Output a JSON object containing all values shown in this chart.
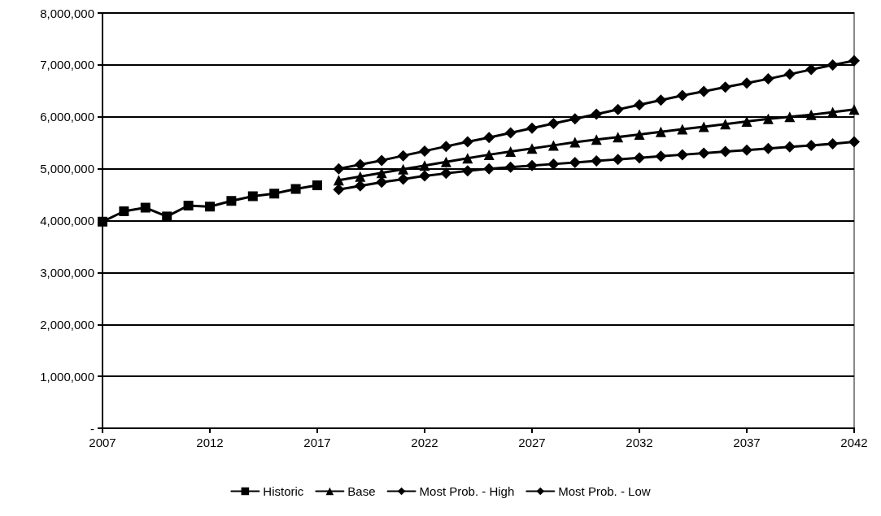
{
  "chart_data": {
    "type": "line",
    "xlim": [
      2007,
      2042
    ],
    "xticks": [
      2007,
      2012,
      2017,
      2022,
      2027,
      2032,
      2037,
      2042
    ],
    "ylim": [
      0,
      8000000
    ],
    "yticks": [
      {
        "value": 0,
        "label": "-"
      },
      {
        "value": 1000000,
        "label": "1,000,000"
      },
      {
        "value": 2000000,
        "label": "2,000,000"
      },
      {
        "value": 3000000,
        "label": "3,000,000"
      },
      {
        "value": 4000000,
        "label": "4,000,000"
      },
      {
        "value": 5000000,
        "label": "5,000,000"
      },
      {
        "value": 6000000,
        "label": "6,000,000"
      },
      {
        "value": 7000000,
        "label": "7,000,000"
      },
      {
        "value": 8000000,
        "label": "8,000,000"
      }
    ],
    "grid": "y",
    "legend": "bottom",
    "line_style": "solid",
    "series": [
      {
        "name": "Historic",
        "color": "#000000",
        "marker": "square",
        "x": [
          2007,
          2008,
          2009,
          2010,
          2011,
          2012,
          2013,
          2014,
          2015,
          2016,
          2017
        ],
        "values": [
          3980000,
          4180000,
          4250000,
          4080000,
          4290000,
          4270000,
          4380000,
          4470000,
          4520000,
          4610000,
          4680000
        ]
      },
      {
        "name": "Base",
        "color": "#000000",
        "marker": "triangle",
        "x": [
          2018,
          2019,
          2020,
          2021,
          2022,
          2023,
          2024,
          2025,
          2026,
          2027,
          2028,
          2029,
          2030,
          2031,
          2032,
          2033,
          2034,
          2035,
          2036,
          2037,
          2038,
          2039,
          2040,
          2041,
          2042
        ],
        "values": [
          4780000,
          4850000,
          4920000,
          4990000,
          5060000,
          5130000,
          5200000,
          5270000,
          5330000,
          5390000,
          5450000,
          5510000,
          5560000,
          5610000,
          5660000,
          5710000,
          5760000,
          5810000,
          5860000,
          5910000,
          5960000,
          6000000,
          6040000,
          6090000,
          6140000
        ]
      },
      {
        "name": "Most Prob. - High",
        "color": "#000000",
        "marker": "diamond",
        "x": [
          2018,
          2019,
          2020,
          2021,
          2022,
          2023,
          2024,
          2025,
          2026,
          2027,
          2028,
          2029,
          2030,
          2031,
          2032,
          2033,
          2034,
          2035,
          2036,
          2037,
          2038,
          2039,
          2040,
          2041,
          2042
        ],
        "values": [
          5000000,
          5080000,
          5160000,
          5250000,
          5340000,
          5430000,
          5520000,
          5600000,
          5690000,
          5780000,
          5870000,
          5960000,
          6050000,
          6140000,
          6230000,
          6320000,
          6410000,
          6490000,
          6570000,
          6650000,
          6730000,
          6820000,
          6910000,
          7000000,
          7080000
        ]
      },
      {
        "name": "Most Prob. - Low",
        "color": "#000000",
        "marker": "diamond",
        "x": [
          2018,
          2019,
          2020,
          2021,
          2022,
          2023,
          2024,
          2025,
          2026,
          2027,
          2028,
          2029,
          2030,
          2031,
          2032,
          2033,
          2034,
          2035,
          2036,
          2037,
          2038,
          2039,
          2040,
          2041,
          2042
        ],
        "values": [
          4600000,
          4670000,
          4740000,
          4800000,
          4860000,
          4910000,
          4960000,
          5000000,
          5030000,
          5060000,
          5090000,
          5120000,
          5150000,
          5180000,
          5210000,
          5240000,
          5270000,
          5300000,
          5330000,
          5360000,
          5390000,
          5420000,
          5450000,
          5480000,
          5520000
        ]
      }
    ]
  }
}
